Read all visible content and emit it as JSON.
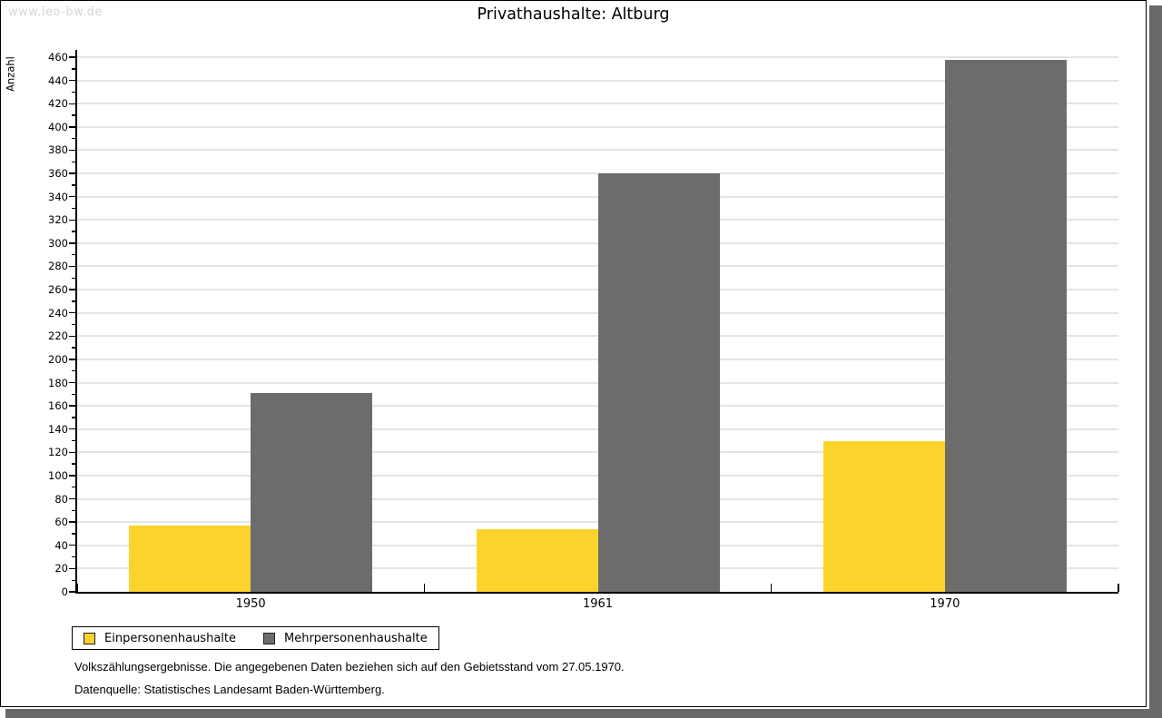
{
  "watermark": "www.leo-bw.de",
  "header": {
    "title": "Privathaushalte: Altburg"
  },
  "footer": {
    "line1": "Volkszählungsergebnisse. Die angegebenen Daten beziehen sich auf den Gebietsstand vom 27.05.1970.",
    "line2": "Datenquelle: Statistisches Landesamt Baden-Württemberg."
  },
  "colors": {
    "bar_yellow": "#fcd32d",
    "bar_gray": "#6c6c6c",
    "gridline": "#e4e4e4",
    "axis": "#000000",
    "watermark_text": "#d5d5d5",
    "frame_shadow": "#696969"
  },
  "chart_data": {
    "type": "bar",
    "title": "Privathaushalte: Altburg",
    "xlabel": "",
    "ylabel": "Anzahl",
    "categories": [
      "1950",
      "1961",
      "1970"
    ],
    "series": [
      {
        "name": "Einpersonenhaushalte",
        "color": "#fcd32d",
        "values": [
          57,
          54,
          130
        ]
      },
      {
        "name": "Mehrpersonenhaushalte",
        "color": "#6c6c6c",
        "values": [
          171,
          360,
          458
        ]
      }
    ],
    "ylim": [
      0,
      460
    ],
    "ytick_major": 20,
    "ytick_minor": 10,
    "grid": "horizontal",
    "legend_position": "bottom-left",
    "legend_labels": [
      "Einpersonenhaushalte",
      "Mehrpersonenhaushalte"
    ]
  }
}
